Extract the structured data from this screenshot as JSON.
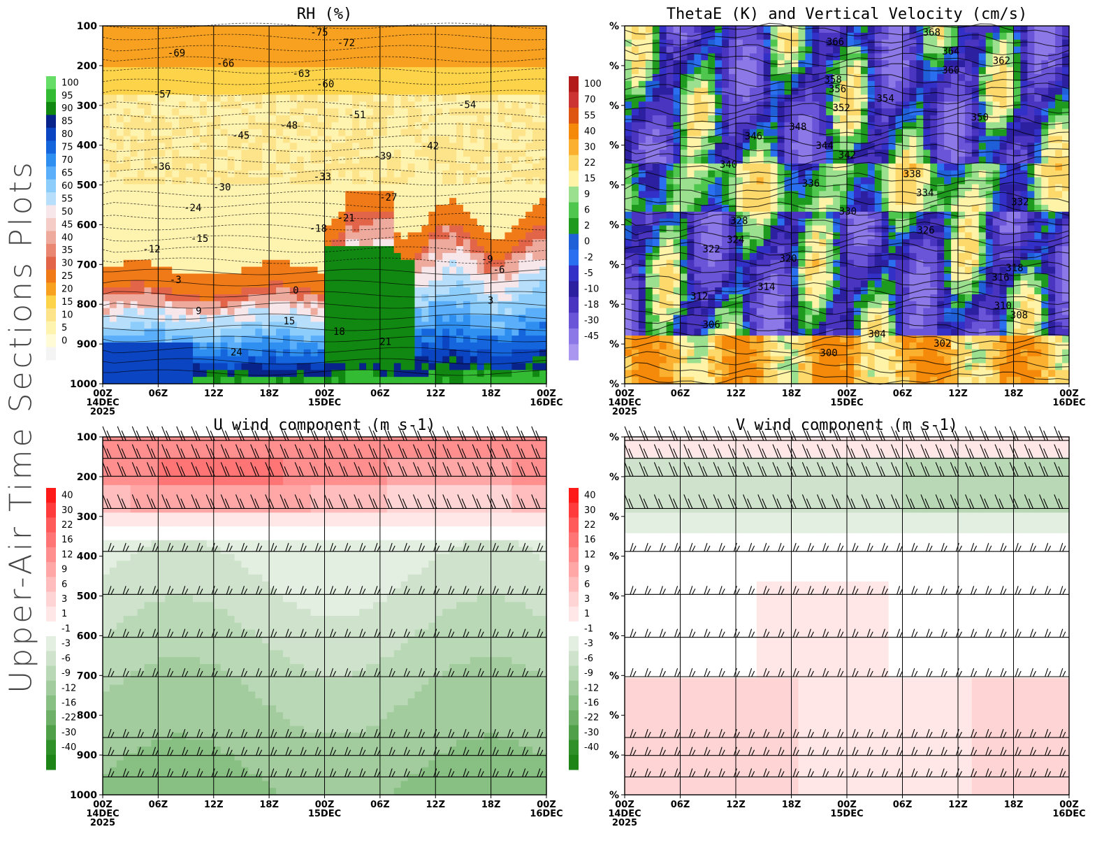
{
  "page": {
    "side_title": "Upper-Air Time Sections Plots"
  },
  "time_axis": {
    "ticks": [
      "00Z",
      "06Z",
      "12Z",
      "18Z",
      "00Z",
      "06Z",
      "12Z",
      "18Z",
      "00Z"
    ],
    "day_labels": [
      {
        "index": 0,
        "lines": [
          "14DEC",
          "2025"
        ]
      },
      {
        "index": 4,
        "lines": [
          "15DEC"
        ]
      },
      {
        "index": 8,
        "lines": [
          "16DEC"
        ]
      }
    ]
  },
  "chart_data": [
    {
      "id": "rh",
      "type": "heatmap",
      "title": "RH (%)",
      "ylabels": [
        "100",
        "200",
        "300",
        "400",
        "500",
        "600",
        "700",
        "800",
        "900",
        "1000"
      ],
      "colorbar": {
        "labels": [
          "100",
          "95",
          "90",
          "85",
          "80",
          "75",
          "70",
          "65",
          "60",
          "55",
          "50",
          "45",
          "40",
          "35",
          "30",
          "25",
          "20",
          "15",
          "10",
          "5",
          "0"
        ],
        "colors": [
          "#66dd66",
          "#33bb33",
          "#118811",
          "#08238a",
          "#0b45c2",
          "#1565dd",
          "#2f8ff0",
          "#5aaefa",
          "#8ccdfb",
          "#b7dffb",
          "#f7e6ea",
          "#f6ccc6",
          "#eeaa9d",
          "#e98773",
          "#e26549",
          "#f07a18",
          "#f8a020",
          "#fdd34a",
          "#fde48b",
          "#fff3b0",
          "#fffbd6",
          "#f4f4f4"
        ]
      },
      "contour_labels": [
        "-75",
        "-72",
        "-69",
        "-66",
        "-63",
        "-60",
        "-57",
        "-54",
        "-51",
        "-48",
        "-45",
        "-42",
        "-39",
        "-36",
        "-33",
        "-30",
        "-27",
        "-24",
        "-21",
        "-18",
        "-15",
        "-12",
        "-9",
        "-6",
        "-3",
        "0",
        "3",
        "9",
        "15",
        "18",
        "21",
        "24"
      ]
    },
    {
      "id": "thetae",
      "type": "heatmap",
      "title": "ThetaE (K) and Vertical Velocity (cm/s)",
      "ylabels": [
        "%",
        "%",
        "%",
        "%",
        "%",
        "%",
        "%",
        "%",
        "%",
        "%"
      ],
      "colorbar": {
        "labels": [
          "100",
          "70",
          "55",
          "40",
          "30",
          "22",
          "15",
          "9",
          "6",
          "2",
          "0",
          "-2",
          "-5",
          "-10",
          "-18",
          "-30",
          "-45"
        ],
        "colors": [
          "#b31a1a",
          "#cc3333",
          "#dd5511",
          "#f58a0a",
          "#fbb12f",
          "#fdd96c",
          "#fef3a6",
          "#9be08f",
          "#4fc74f",
          "#1e9a1e",
          "#1f5fd8",
          "#2a6ff0",
          "#3330c8",
          "#2c1fa0",
          "#4a35c0",
          "#6a55d8",
          "#8c78e6",
          "#aa98f0"
        ]
      },
      "contour_labels": [
        "368",
        "366",
        "364",
        "362",
        "360",
        "358",
        "356",
        "354",
        "352",
        "350",
        "348",
        "346",
        "344",
        "342",
        "340",
        "338",
        "336",
        "334",
        "332",
        "330",
        "328",
        "326",
        "324",
        "322",
        "320",
        "318",
        "316",
        "314",
        "312",
        "310",
        "308",
        "306",
        "304",
        "302",
        "300"
      ]
    },
    {
      "id": "uwind",
      "type": "heatmap",
      "title": "U wind component (m s-1)",
      "ylabels": [
        "100",
        "200",
        "300",
        "400",
        "500",
        "600",
        "700",
        "800",
        "900",
        "1000"
      ],
      "colorbar": {
        "labels": [
          "40",
          "30",
          "22",
          "16",
          "12",
          "9",
          "6",
          "3",
          "1",
          "-1",
          "-3",
          "-6",
          "-9",
          "-12",
          "-16",
          "-22",
          "-30",
          "-40"
        ],
        "colors": [
          "#ff1a1a",
          "#ff3b3b",
          "#ff5b5b",
          "#ff7474",
          "#ff8e8e",
          "#ffa7a7",
          "#ffbdbd",
          "#ffd4d4",
          "#ffe7e7",
          "#ffffff",
          "#e3efe1",
          "#cfe3cc",
          "#b9d8b5",
          "#a2cc9d",
          "#88bf82",
          "#6eb067",
          "#4fa048",
          "#2f8f28",
          "#1e8418"
        ]
      }
    },
    {
      "id": "vwind",
      "type": "heatmap",
      "title": "V wind component (m s-1)",
      "ylabels": [
        "%",
        "%",
        "%",
        "%",
        "%",
        "%",
        "%",
        "%",
        "%",
        "%"
      ],
      "colorbar": {
        "labels": [
          "40",
          "30",
          "22",
          "16",
          "12",
          "9",
          "6",
          "3",
          "1",
          "-1",
          "-3",
          "-6",
          "-9",
          "-12",
          "-16",
          "-22",
          "-30",
          "-40"
        ],
        "colors": [
          "#ff1a1a",
          "#ff3b3b",
          "#ff5b5b",
          "#ff7474",
          "#ff8e8e",
          "#ffa7a7",
          "#ffbdbd",
          "#ffd4d4",
          "#ffe7e7",
          "#ffffff",
          "#e3efe1",
          "#cfe3cc",
          "#b9d8b5",
          "#a2cc9d",
          "#88bf82",
          "#6eb067",
          "#4fa048",
          "#2f8f28",
          "#1e8418"
        ]
      }
    }
  ]
}
